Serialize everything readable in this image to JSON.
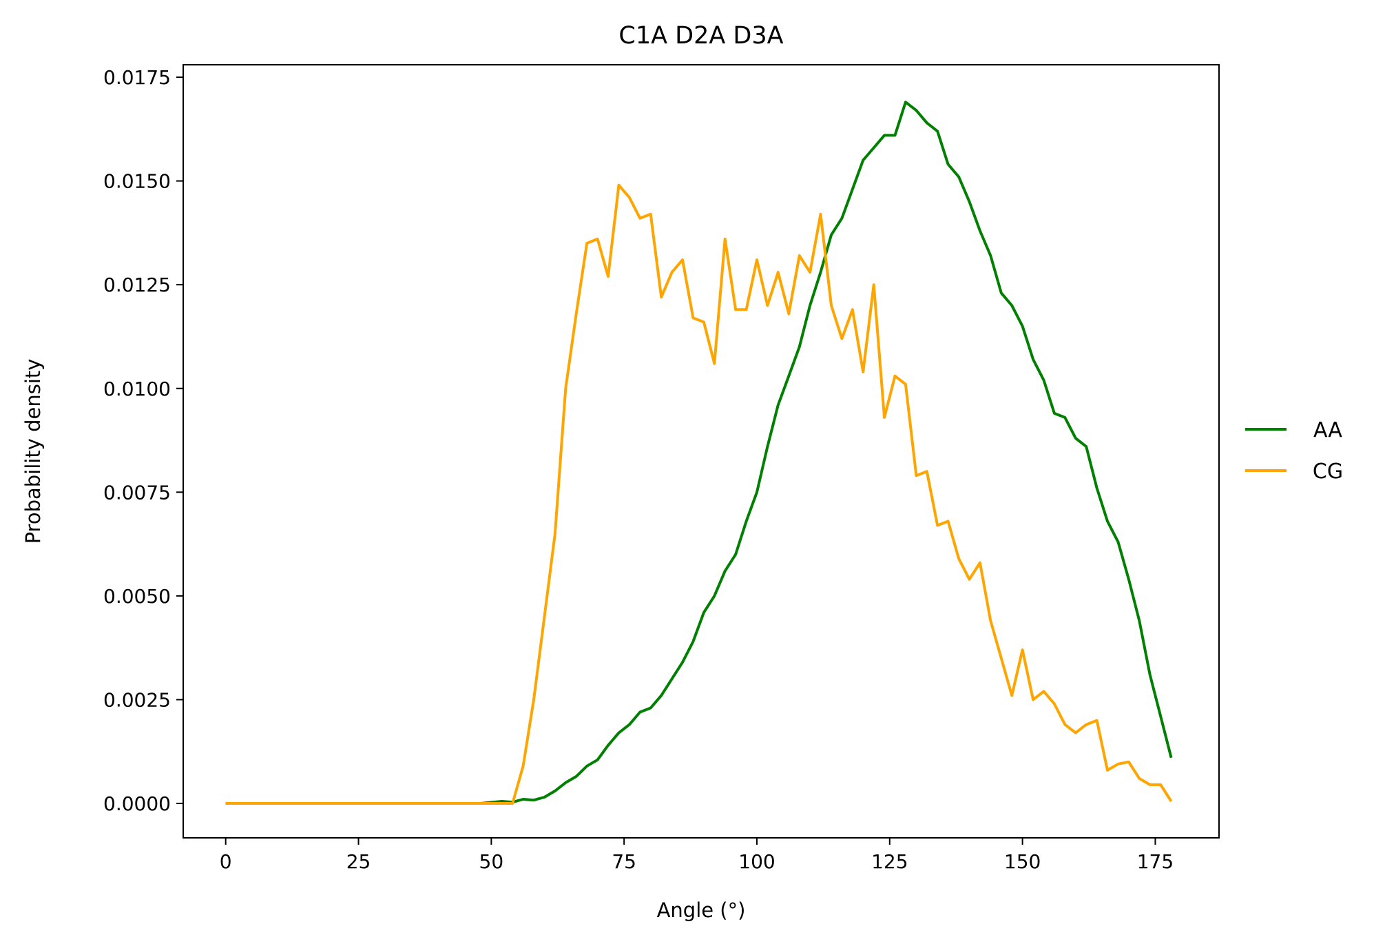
{
  "chart_data": {
    "type": "line",
    "title": "C1A D2A D3A",
    "xlabel": "Angle (°)",
    "ylabel": "Probability density",
    "xlim": [
      -8,
      187
    ],
    "ylim": [
      -0.00083,
      0.0178
    ],
    "xticks": [
      0,
      25,
      50,
      75,
      100,
      125,
      150,
      175
    ],
    "xtick_labels": [
      "0",
      "25",
      "50",
      "75",
      "100",
      "125",
      "150",
      "175"
    ],
    "yticks": [
      0,
      0.0025,
      0.005,
      0.0075,
      0.01,
      0.0125,
      0.015,
      0.0175
    ],
    "ytick_labels": [
      "0.0000",
      "0.0025",
      "0.0050",
      "0.0075",
      "0.0100",
      "0.0125",
      "0.0150",
      "0.0175"
    ],
    "grid": false,
    "legend_position": "right",
    "series": [
      {
        "name": "AA",
        "color": "#008000",
        "x": [
          0,
          48,
          52,
          54,
          56,
          58,
          60,
          62,
          64,
          66,
          68,
          70,
          72,
          74,
          76,
          78,
          80,
          82,
          84,
          86,
          88,
          90,
          92,
          94,
          96,
          98,
          100,
          102,
          104,
          106,
          108,
          110,
          112,
          114,
          116,
          118,
          120,
          122,
          124,
          126,
          128,
          130,
          132,
          134,
          136,
          138,
          140,
          142,
          144,
          146,
          148,
          150,
          152,
          154,
          156,
          158,
          160,
          162,
          164,
          166,
          168,
          170,
          172,
          174,
          176,
          178
        ],
        "y": [
          0,
          0,
          5e-05,
          3e-05,
          0.0001,
          8e-05,
          0.00015,
          0.0003,
          0.0005,
          0.00065,
          0.0009,
          0.00105,
          0.0014,
          0.0017,
          0.0019,
          0.0022,
          0.0023,
          0.0026,
          0.003,
          0.0034,
          0.0039,
          0.0046,
          0.005,
          0.0056,
          0.006,
          0.0068,
          0.0075,
          0.0086,
          0.0096,
          0.0103,
          0.011,
          0.012,
          0.0128,
          0.0137,
          0.0141,
          0.0148,
          0.0155,
          0.0158,
          0.0161,
          0.0161,
          0.0169,
          0.0167,
          0.0164,
          0.0162,
          0.0154,
          0.0151,
          0.0145,
          0.0138,
          0.0132,
          0.0123,
          0.012,
          0.0115,
          0.0107,
          0.0102,
          0.0094,
          0.0093,
          0.0088,
          0.0086,
          0.0076,
          0.0068,
          0.0063,
          0.0054,
          0.0044,
          0.0031,
          0.0021,
          0.0011
        ]
      },
      {
        "name": "CG",
        "color": "#ffa500",
        "x": [
          0,
          54,
          56,
          58,
          60,
          62,
          64,
          66,
          68,
          70,
          72,
          74,
          76,
          78,
          80,
          82,
          84,
          86,
          88,
          90,
          92,
          94,
          96,
          98,
          100,
          102,
          104,
          106,
          108,
          110,
          112,
          114,
          116,
          118,
          120,
          122,
          124,
          126,
          128,
          130,
          132,
          134,
          136,
          138,
          140,
          142,
          144,
          146,
          148,
          150,
          152,
          154,
          156,
          158,
          160,
          162,
          164,
          166,
          168,
          170,
          172,
          174,
          176,
          178
        ],
        "y": [
          0,
          0,
          0.0009,
          0.0025,
          0.0045,
          0.0065,
          0.01,
          0.0118,
          0.0135,
          0.0136,
          0.0127,
          0.0149,
          0.0146,
          0.0141,
          0.0142,
          0.0122,
          0.0128,
          0.0131,
          0.0117,
          0.0116,
          0.0106,
          0.0136,
          0.0119,
          0.0119,
          0.0131,
          0.012,
          0.0128,
          0.0118,
          0.0132,
          0.0128,
          0.0142,
          0.012,
          0.0112,
          0.0119,
          0.0104,
          0.0125,
          0.0093,
          0.0103,
          0.0101,
          0.0079,
          0.008,
          0.0067,
          0.0068,
          0.0059,
          0.0054,
          0.0058,
          0.0044,
          0.0035,
          0.0026,
          0.0037,
          0.0025,
          0.0027,
          0.0024,
          0.0019,
          0.0017,
          0.0019,
          0.002,
          0.0008,
          0.00095,
          0.001,
          0.0006,
          0.00045,
          0.00045,
          5e-05
        ]
      }
    ]
  }
}
